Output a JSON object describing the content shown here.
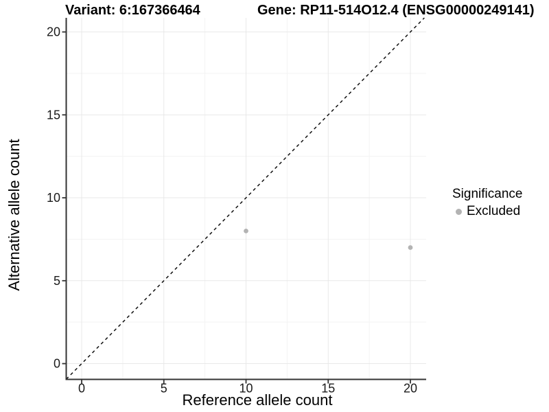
{
  "chart_data": {
    "type": "scatter",
    "title_variant": "Variant: 6:167366464",
    "title_gene": "Gene: RP11-514O12.4 (ENSG00000249141)",
    "xlabel": "Reference allele count",
    "ylabel": "Alternative allele count",
    "x_ticks": [
      0,
      5,
      10,
      15,
      20
    ],
    "y_ticks": [
      0,
      5,
      10,
      15,
      20
    ],
    "xlim": [
      -0.94,
      20.96
    ],
    "ylim": [
      -0.95,
      20.85
    ],
    "grid": {
      "major": true,
      "minor": true,
      "major_color": "#e8e8e8",
      "minor_color": "#f3f3f3"
    },
    "identity_line": {
      "style": "dashed",
      "equation": "y = x",
      "color": "#111111"
    },
    "points": [
      {
        "x": 10,
        "y": 8,
        "significance": "Excluded"
      },
      {
        "x": 20,
        "y": 7,
        "significance": "Excluded"
      }
    ],
    "point_color": "#b3b3b3",
    "point_radius": 3.4,
    "axis_color": "#333333",
    "tick_label_color": "#1a1a1a",
    "legend": {
      "title": "Significance",
      "position": "right",
      "items": [
        {
          "label": "Excluded",
          "color": "#b3b3b3",
          "marker": "circle"
        }
      ]
    }
  }
}
